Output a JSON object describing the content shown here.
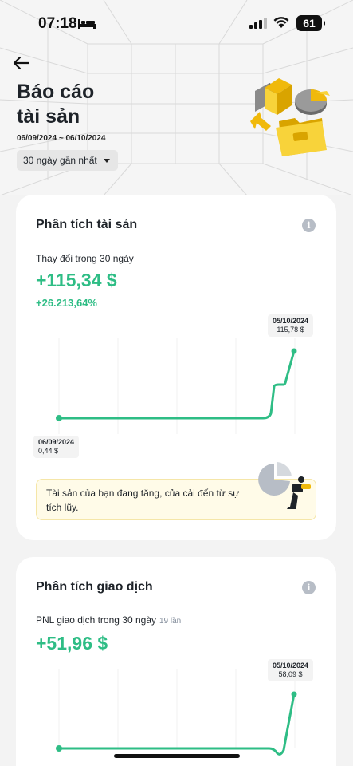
{
  "status_bar": {
    "time": "07:18",
    "battery": "61",
    "icons": [
      "bed-icon",
      "signal-icon",
      "wifi-icon",
      "battery-icon"
    ]
  },
  "header": {
    "title_line1": "Báo cáo",
    "title_line2": "tài sản",
    "date_range": "06/09/2024 ~ 06/10/2024",
    "period_select": "30 ngày gần nhất"
  },
  "asset_analysis": {
    "title": "Phân tích tài sản",
    "subtitle": "Thay đổi trong 30 ngày",
    "value": "+115,34 $",
    "percent": "+26.213,64%",
    "start_label_date": "06/09/2024",
    "start_label_value": "0,44 $",
    "end_label_date": "05/10/2024",
    "end_label_value": "115,78 $",
    "note": "Tài sản của bạn đang tăng, của cải đến từ sự tích lũy.",
    "line_color": "#2ebd85"
  },
  "trade_analysis": {
    "title": "Phân tích giao dịch",
    "subtitle": "PNL giao dịch trong 30 ngày",
    "count": "19 lần",
    "value": "+51,96 $",
    "end_label_date": "05/10/2024",
    "end_label_value": "58,09 $",
    "line_color": "#2ebd85"
  },
  "chart_data": [
    {
      "type": "line",
      "x": [
        "06/09/2024",
        "05/10/2024"
      ],
      "points": [
        {
          "x": "06/09/2024",
          "y": 0.44
        },
        {
          "x": "05/10/2024",
          "y": 115.78
        }
      ]
    },
    {
      "type": "line",
      "x": [
        "05/10/2024"
      ],
      "points": [
        {
          "x": "05/10/2024",
          "y": 58.09
        }
      ]
    }
  ]
}
